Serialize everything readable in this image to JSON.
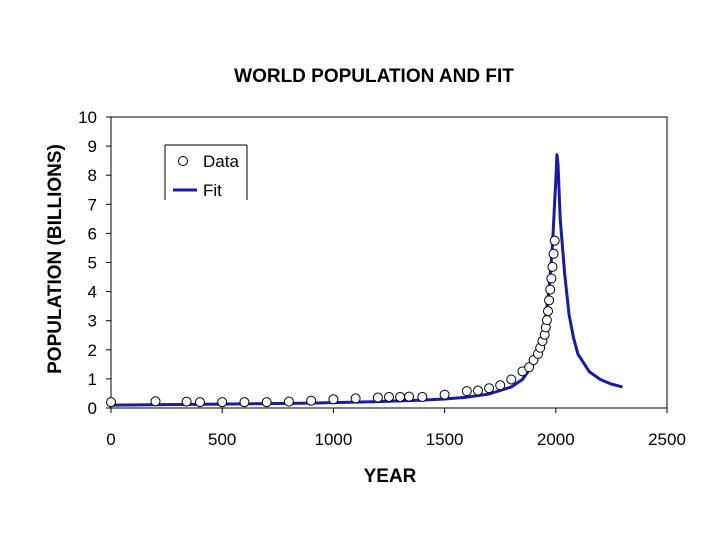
{
  "chart_data": {
    "type": "scatter",
    "title": "WORLD POPULATION AND FIT",
    "xlabel": "YEAR",
    "ylabel": "POPULATION (BILLIONS)",
    "xlim": [
      0,
      2500
    ],
    "ylim": [
      0,
      10
    ],
    "xticks": [
      0,
      500,
      1000,
      1500,
      2000,
      2500
    ],
    "yticks": [
      0,
      1,
      2,
      3,
      4,
      5,
      6,
      7,
      8,
      9,
      10
    ],
    "legend": {
      "position": "top-left",
      "entries": [
        {
          "label": "Data",
          "marker": "open-circle"
        },
        {
          "label": "Fit",
          "marker": "line"
        }
      ]
    },
    "colors": {
      "fit": "#1a1aa8",
      "data_stroke": "#000000",
      "data_fill": "#ffffff",
      "axis": "#000000"
    },
    "series": [
      {
        "name": "Data",
        "style": "markers",
        "x": [
          0,
          200,
          340,
          400,
          500,
          600,
          700,
          800,
          900,
          1000,
          1100,
          1200,
          1250,
          1300,
          1340,
          1400,
          1500,
          1600,
          1650,
          1700,
          1750,
          1800,
          1850,
          1880,
          1900,
          1920,
          1930,
          1940,
          1950,
          1955,
          1960,
          1965,
          1970,
          1975,
          1980,
          1985,
          1990,
          1995
        ],
        "y": [
          0.2,
          0.23,
          0.22,
          0.2,
          0.2,
          0.2,
          0.2,
          0.22,
          0.25,
          0.3,
          0.33,
          0.36,
          0.38,
          0.38,
          0.39,
          0.38,
          0.46,
          0.58,
          0.6,
          0.68,
          0.78,
          0.98,
          1.26,
          1.4,
          1.65,
          1.86,
          2.07,
          2.3,
          2.52,
          2.77,
          3.02,
          3.33,
          3.7,
          4.07,
          4.45,
          4.85,
          5.3,
          5.75
        ]
      },
      {
        "name": "Fit",
        "style": "line",
        "x": [
          0,
          300,
          600,
          900,
          1200,
          1400,
          1500,
          1600,
          1700,
          1800,
          1850,
          1900,
          1930,
          1950,
          1970,
          1985,
          1995,
          2000,
          2005,
          2010,
          2020,
          2040,
          2060,
          2080,
          2100,
          2150,
          2200,
          2250,
          2300
        ],
        "y": [
          0.1,
          0.12,
          0.14,
          0.17,
          0.22,
          0.27,
          0.31,
          0.37,
          0.48,
          0.72,
          0.98,
          1.52,
          2.1,
          2.85,
          4.1,
          5.6,
          7.1,
          7.8,
          8.7,
          8.4,
          6.5,
          4.6,
          3.2,
          2.4,
          1.85,
          1.25,
          0.98,
          0.82,
          0.72
        ]
      }
    ]
  }
}
